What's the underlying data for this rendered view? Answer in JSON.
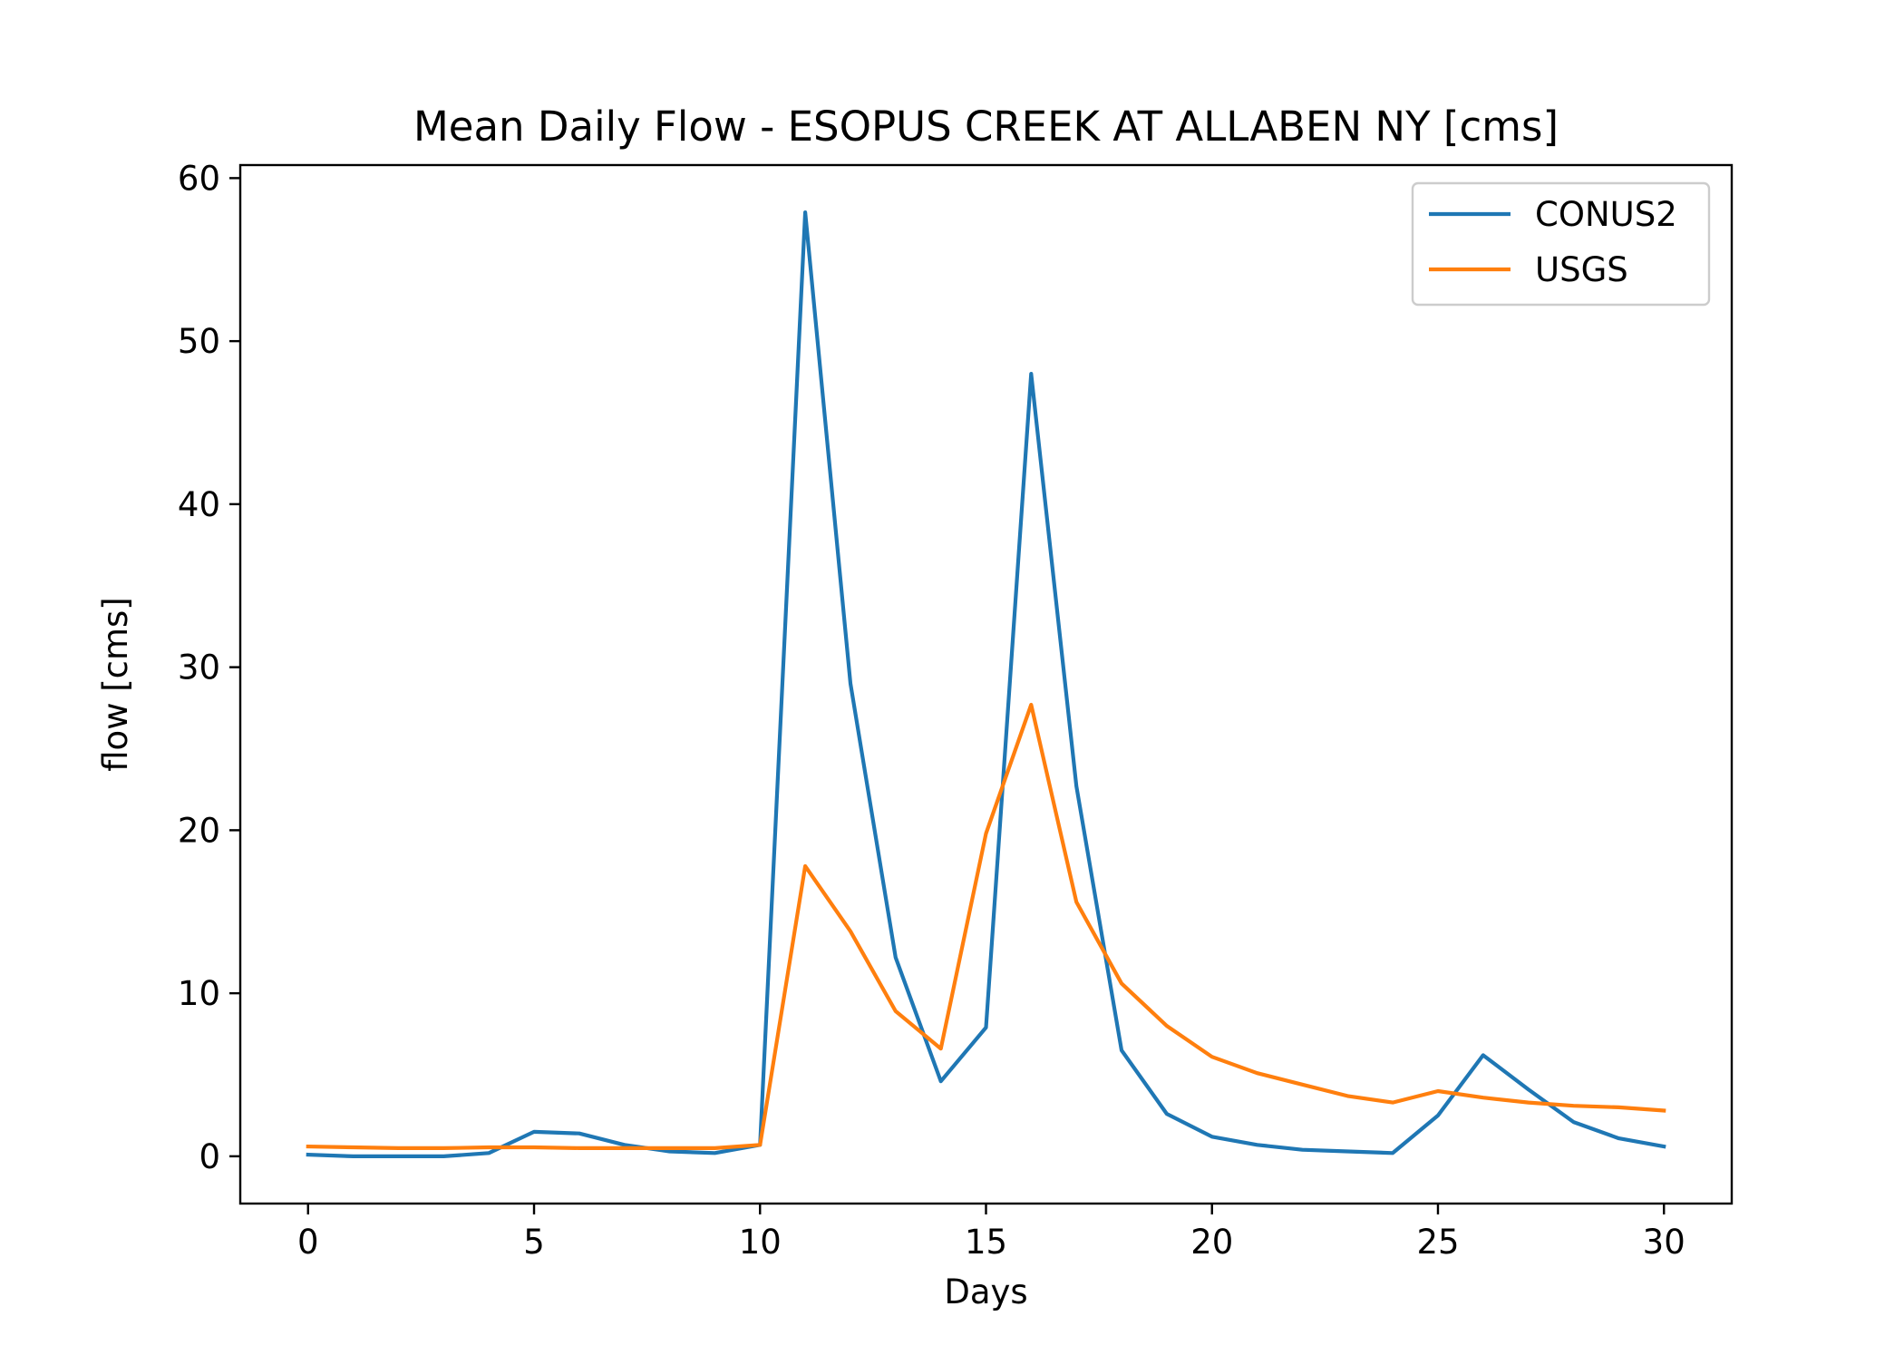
{
  "chart_data": {
    "type": "line",
    "title": "Mean Daily Flow - ESOPUS CREEK AT ALLABEN NY [cms]",
    "xlabel": "Days",
    "ylabel": "flow [cms]",
    "xlim": [
      -1.5,
      31.5
    ],
    "ylim": [
      -2.9,
      60.8
    ],
    "xticks": [
      0,
      5,
      10,
      15,
      20,
      25,
      30
    ],
    "yticks": [
      0,
      10,
      20,
      30,
      40,
      50,
      60
    ],
    "grid": false,
    "legend_position": "top-right",
    "x": [
      0,
      1,
      2,
      3,
      4,
      5,
      6,
      7,
      8,
      9,
      10,
      11,
      12,
      13,
      14,
      15,
      16,
      17,
      18,
      19,
      20,
      21,
      22,
      23,
      24,
      25,
      26,
      27,
      28,
      29,
      30
    ],
    "series": [
      {
        "name": "CONUS2",
        "color": "#1f77b4",
        "values": [
          0.1,
          0.0,
          0.0,
          0.0,
          0.2,
          1.5,
          1.4,
          0.7,
          0.3,
          0.2,
          0.7,
          57.9,
          29.0,
          12.2,
          4.6,
          7.9,
          48.0,
          22.7,
          6.5,
          2.6,
          1.2,
          0.7,
          0.4,
          0.3,
          0.2,
          2.5,
          6.2,
          4.1,
          2.1,
          1.1,
          0.6
        ]
      },
      {
        "name": "USGS",
        "color": "#ff7f0e",
        "values": [
          0.6,
          0.55,
          0.5,
          0.5,
          0.55,
          0.55,
          0.5,
          0.5,
          0.5,
          0.5,
          0.7,
          17.8,
          13.8,
          8.9,
          6.6,
          19.8,
          27.7,
          15.6,
          10.6,
          8.0,
          6.1,
          5.1,
          4.4,
          3.7,
          3.3,
          4.0,
          3.6,
          3.3,
          3.1,
          3.0,
          2.8
        ]
      }
    ]
  }
}
